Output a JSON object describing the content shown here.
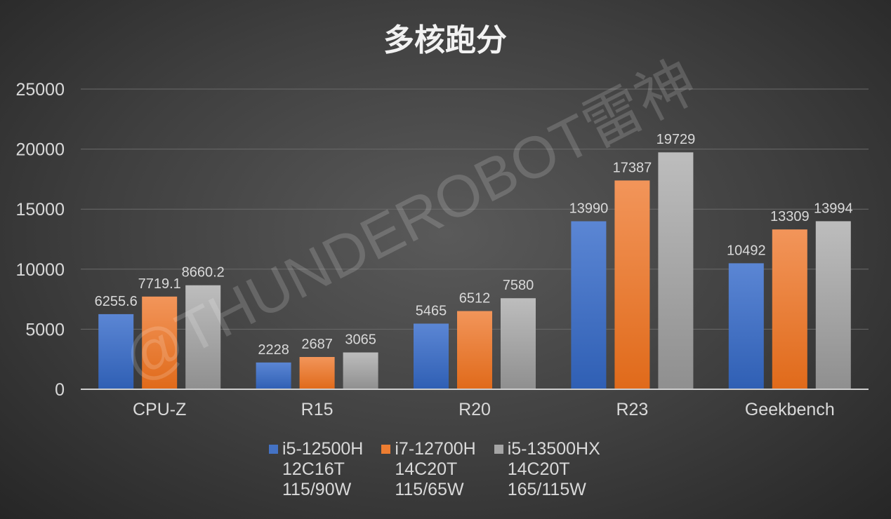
{
  "chart_data": {
    "type": "bar",
    "title": "多核跑分",
    "categories": [
      "CPU-Z",
      "R15",
      "R20",
      "R23",
      "Geekbench"
    ],
    "series": [
      {
        "name": "i5-12500H 12C16T 115/90W",
        "legend_lines": [
          "i5-12500H",
          "12C16T",
          "115/90W"
        ],
        "color": "#4472c4",
        "values": [
          6255.6,
          2228,
          5465,
          13990,
          10492
        ],
        "labels": [
          "6255.6",
          "2228",
          "5465",
          "13990",
          "10492"
        ]
      },
      {
        "name": "i7-12700H 14C20T 115/65W",
        "legend_lines": [
          "i7-12700H",
          "14C20T",
          "115/65W"
        ],
        "color": "#ed7d31",
        "values": [
          7719.1,
          2687,
          6512,
          17387,
          13309
        ],
        "labels": [
          "7719.1",
          "2687",
          "6512",
          "17387",
          "13309"
        ]
      },
      {
        "name": "i5-13500HX 14C20T 165/115W",
        "legend_lines": [
          "i5-13500HX",
          "14C20T",
          "165/115W"
        ],
        "color": "#a5a5a5",
        "values": [
          8660.2,
          3065,
          7580,
          19729,
          13994
        ],
        "labels": [
          "8660.2",
          "3065",
          "7580",
          "19729",
          "13994"
        ]
      }
    ],
    "yticks": [
      "0",
      "5000",
      "10000",
      "15000",
      "20000",
      "25000"
    ],
    "ylim": [
      0,
      25000
    ],
    "grid": true,
    "legend_position": "bottom",
    "watermark": "@THUNDEROBOT雷神"
  }
}
